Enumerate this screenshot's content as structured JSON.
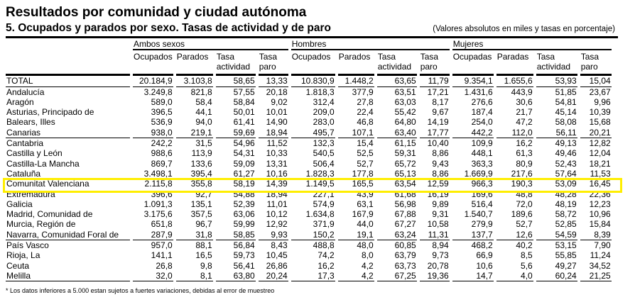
{
  "title": "Resultados por comunidad y ciudad autónoma",
  "subtitle": "5. Ocupados y parados por sexo. Tasas de actividad y de paro",
  "note": "(Valores absolutos en miles y tasas en porcentaje)",
  "groups": [
    "Ambos sexos",
    "Hombres",
    "Mujeres"
  ],
  "columns": {
    "ambos": [
      "Ocupados",
      "Parados",
      "Tasa actividad",
      "Tasa paro"
    ],
    "hombres": [
      "Ocupados",
      "Parados",
      "Tasa actividad",
      "Tasa paro"
    ],
    "mujeres": [
      "Ocupadas",
      "Paradas",
      "Tasa actividad",
      "Tasa paro"
    ]
  },
  "highlight_color": "#ffee00",
  "rows": [
    [
      "TOTAL",
      "20.184,9",
      "3.103,8",
      "58,65",
      "13,33",
      "10.830,9",
      "1.448,2",
      "63,65",
      "11,79",
      "9.354,1",
      "1.655,6",
      "53,93",
      "15,04"
    ],
    [
      "Andalucía",
      "3.249,8",
      "821,8",
      "57,55",
      "20,18",
      "1.818,3",
      "377,9",
      "63,51",
      "17,21",
      "1.431,6",
      "443,9",
      "51,85",
      "23,67"
    ],
    [
      "Aragón",
      "589,0",
      "58,4",
      "58,84",
      "9,02",
      "312,4",
      "27,8",
      "63,03",
      "8,17",
      "276,6",
      "30,6",
      "54,81",
      "9,96"
    ],
    [
      "Asturias, Principado de",
      "396,5",
      "44,1",
      "50,01",
      "10,01",
      "209,0",
      "22,4",
      "55,42",
      "9,67",
      "187,4",
      "21,7",
      "45,14",
      "10,39"
    ],
    [
      "Balears, Illes",
      "536,9",
      "94,0",
      "61,41",
      "14,90",
      "283,0",
      "46,8",
      "64,80",
      "14,19",
      "254,0",
      "47,2",
      "58,08",
      "15,68"
    ],
    [
      "Canarias",
      "938,0",
      "219,1",
      "59,69",
      "18,94",
      "495,7",
      "107,1",
      "63,40",
      "17,77",
      "442,2",
      "112,0",
      "56,11",
      "20,21"
    ],
    [
      "Cantabria",
      "242,2",
      "31,5",
      "54,96",
      "11,52",
      "132,3",
      "15,4",
      "61,15",
      "10,40",
      "109,9",
      "16,2",
      "49,13",
      "12,82"
    ],
    [
      "Castilla y León",
      "988,6",
      "113,9",
      "54,31",
      "10,33",
      "540,5",
      "52,5",
      "59,31",
      "8,86",
      "448,1",
      "61,3",
      "49,46",
      "12,04"
    ],
    [
      "Castilla-La Mancha",
      "869,7",
      "133,6",
      "59,09",
      "13,31",
      "506,4",
      "52,7",
      "65,72",
      "9,43",
      "363,3",
      "80,9",
      "52,43",
      "18,21"
    ],
    [
      "Cataluña",
      "3.498,1",
      "395,4",
      "61,27",
      "10,16",
      "1.828,3",
      "177,8",
      "65,13",
      "8,86",
      "1.669,9",
      "217,6",
      "57,64",
      "11,53"
    ],
    [
      "Comunitat Valenciana",
      "2.115,8",
      "355,8",
      "58,19",
      "14,39",
      "1.149,5",
      "165,5",
      "63,54",
      "12,59",
      "966,3",
      "190,3",
      "53,09",
      "16,45"
    ],
    [
      "Extremadura",
      "396,6",
      "92,7",
      "54,88",
      "18,94",
      "227,1",
      "43,9",
      "61,68",
      "16,19",
      "169,6",
      "48,8",
      "48,28",
      "22,36"
    ],
    [
      "Galicia",
      "1.091,3",
      "135,1",
      "52,39",
      "11,01",
      "574,9",
      "63,1",
      "56,98",
      "9,89",
      "516,4",
      "72,0",
      "48,19",
      "12,23"
    ],
    [
      "Madrid, Comunidad de",
      "3.175,6",
      "357,5",
      "63,06",
      "10,12",
      "1.634,8",
      "167,9",
      "67,88",
      "9,31",
      "1.540,7",
      "189,6",
      "58,72",
      "10,96"
    ],
    [
      "Murcia, Región de",
      "651,8",
      "96,7",
      "59,99",
      "12,92",
      "371,9",
      "44,0",
      "67,27",
      "10,58",
      "279,9",
      "52,7",
      "52,85",
      "15,84"
    ],
    [
      "Navarra, Comunidad Foral de",
      "287,9",
      "31,8",
      "58,85",
      "9,93",
      "150,2",
      "19,1",
      "63,24",
      "11,31",
      "137,7",
      "12,6",
      "54,59",
      "8,39"
    ],
    [
      "País Vasco",
      "957,0",
      "88,1",
      "56,84",
      "8,43",
      "488,8",
      "48,0",
      "60,85",
      "8,94",
      "468,2",
      "40,2",
      "53,15",
      "7,90"
    ],
    [
      "Rioja, La",
      "141,1",
      "16,5",
      "59,73",
      "10,45",
      "74,2",
      "8,0",
      "63,79",
      "9,73",
      "66,9",
      "8,5",
      "55,85",
      "11,24"
    ],
    [
      "Ceuta",
      "26,8",
      "9,8",
      "56,41",
      "26,86",
      "16,2",
      "4,2",
      "63,73",
      "20,78",
      "10,6",
      "5,6",
      "49,27",
      "34,52"
    ],
    [
      "Melilla",
      "32,0",
      "8,1",
      "63,80",
      "20,24",
      "17,3",
      "4,2",
      "67,25",
      "19,36",
      "14,7",
      "4,0",
      "60,24",
      "21,25"
    ]
  ],
  "footer": "* Los datos inferiores a 5.000 estan sujetos a fuertes variaciones, debidas al error de muestreo"
}
